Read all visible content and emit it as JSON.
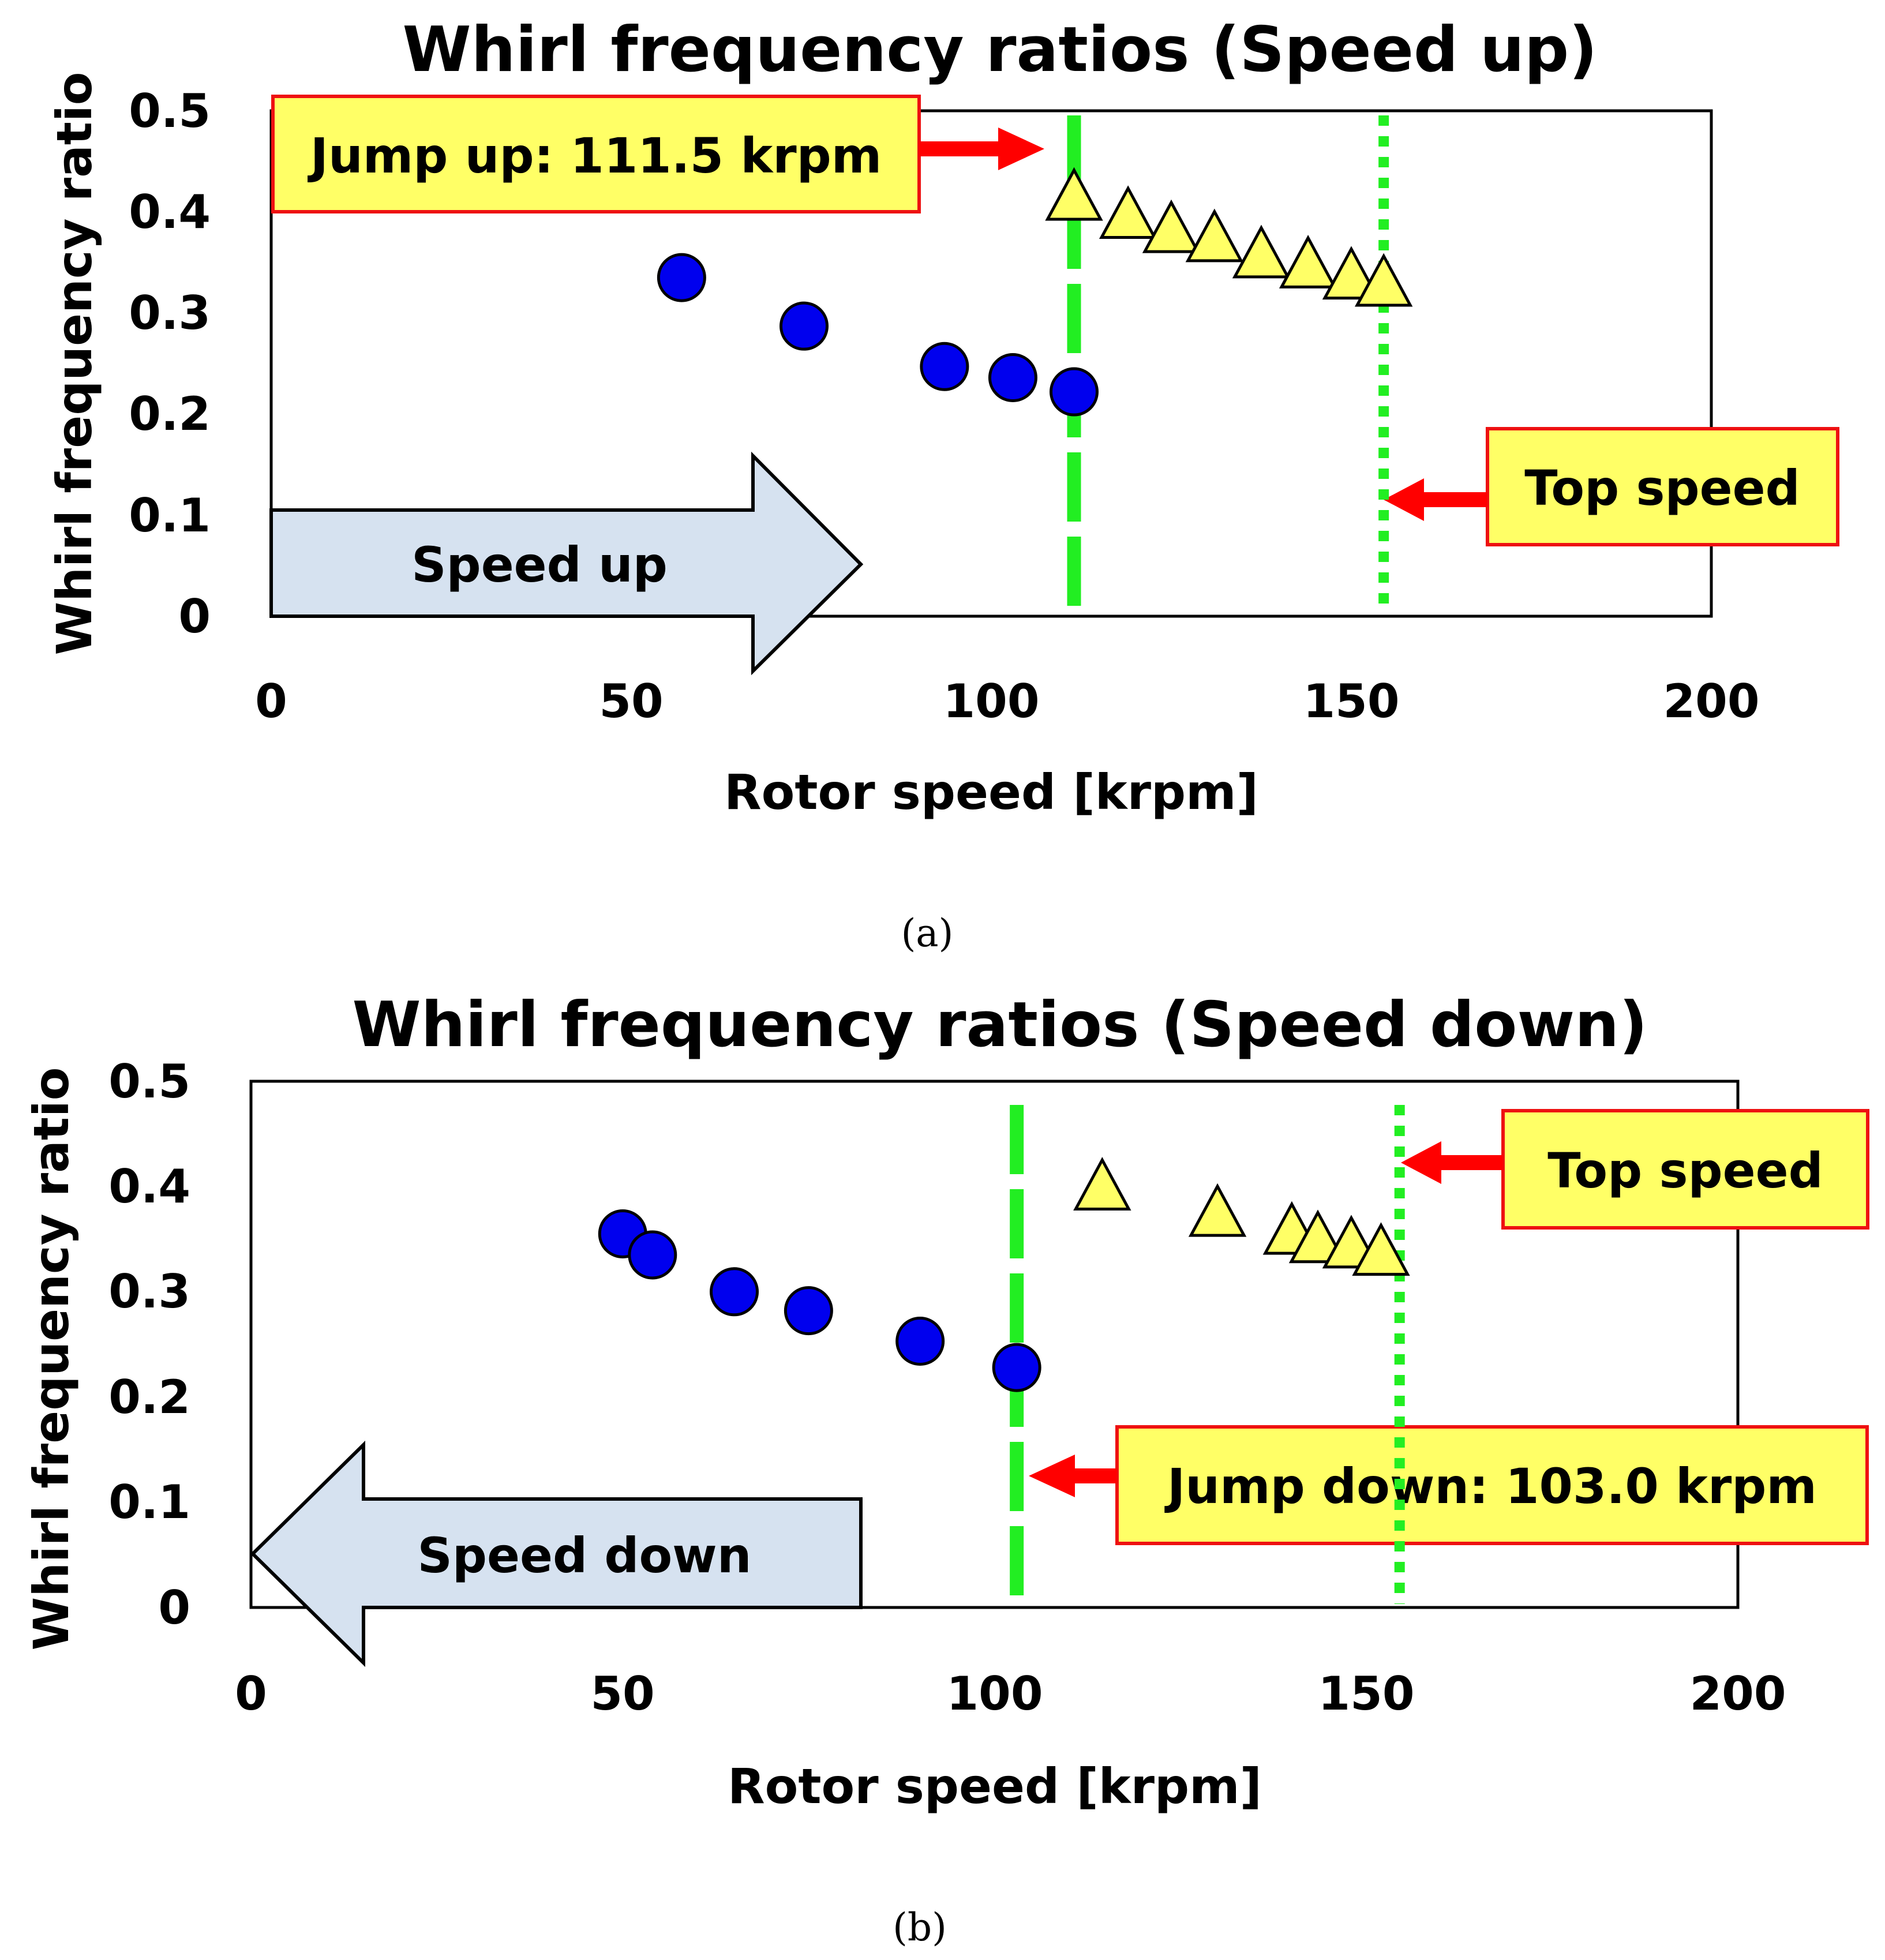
{
  "colors": {
    "circle_fill": "#0000ee",
    "triangle_fill": "#ffff66",
    "callout_fill": "#ffff66",
    "callout_border": "#ee1111",
    "pointer": "#ff0000",
    "guide": "#22ee22",
    "arrow_fill": "#d6e2f0"
  },
  "chart_data": [
    {
      "type": "scatter",
      "title": "Whirl frequency ratios (Speed up)",
      "xlabel": "Rotor speed [krpm]",
      "ylabel": "Whirl frequency ratio",
      "xlim": [
        0,
        200
      ],
      "ylim": [
        0,
        0.5
      ],
      "xticks": [
        "0",
        "50",
        "100",
        "150",
        "200"
      ],
      "yticks": [
        "0",
        "0.1",
        "0.2",
        "0.3",
        "0.4",
        "0.5"
      ],
      "series": [
        {
          "name": "circles",
          "marker": "circle",
          "x": [
            57,
            74,
            93.5,
            103,
            111.5
          ],
          "y": [
            0.335,
            0.287,
            0.247,
            0.236,
            0.222
          ]
        },
        {
          "name": "triangles",
          "marker": "triangle",
          "x": [
            111.5,
            119,
            125,
            131,
            137.5,
            144,
            150,
            154.5
          ],
          "y": [
            0.415,
            0.397,
            0.383,
            0.374,
            0.358,
            0.348,
            0.337,
            0.33
          ]
        }
      ],
      "guides": [
        {
          "name": "jump",
          "x": 111.5,
          "style": "dashed"
        },
        {
          "name": "top",
          "x": 154.5,
          "style": "dotted"
        }
      ],
      "callouts": [
        {
          "name": "jump-up-callout",
          "text": "Jump up: 111.5 krpm"
        },
        {
          "name": "top-speed-callout",
          "text": "Top speed"
        }
      ],
      "direction_arrow": {
        "text": "Speed up",
        "direction": "right"
      },
      "caption": "(a)"
    },
    {
      "type": "scatter",
      "title": "Whirl frequency ratios (Speed down)",
      "xlabel": "Rotor speed [krpm]",
      "ylabel": "Whirl frequency ratio",
      "xlim": [
        0,
        200
      ],
      "ylim": [
        0,
        0.5
      ],
      "xticks": [
        "0",
        "50",
        "100",
        "150",
        "200"
      ],
      "yticks": [
        "0",
        "0.1",
        "0.2",
        "0.3",
        "0.4",
        "0.5"
      ],
      "series": [
        {
          "name": "circles",
          "marker": "circle",
          "x": [
            50,
            54,
            65,
            75,
            90,
            103
          ],
          "y": [
            0.355,
            0.335,
            0.3,
            0.282,
            0.253,
            0.228
          ]
        },
        {
          "name": "triangles",
          "marker": "triangle",
          "x": [
            114.5,
            130,
            140,
            143.5,
            148,
            152
          ],
          "y": [
            0.4,
            0.375,
            0.358,
            0.35,
            0.345,
            0.338
          ]
        }
      ],
      "guides": [
        {
          "name": "jump",
          "x": 103,
          "style": "dashed"
        },
        {
          "name": "top",
          "x": 154.5,
          "style": "dotted"
        }
      ],
      "callouts": [
        {
          "name": "top-speed-callout",
          "text": "Top speed"
        },
        {
          "name": "jump-down-callout",
          "text": "Jump down: 103.0 krpm"
        }
      ],
      "direction_arrow": {
        "text": "Speed down",
        "direction": "left"
      },
      "caption": "(b)"
    }
  ]
}
